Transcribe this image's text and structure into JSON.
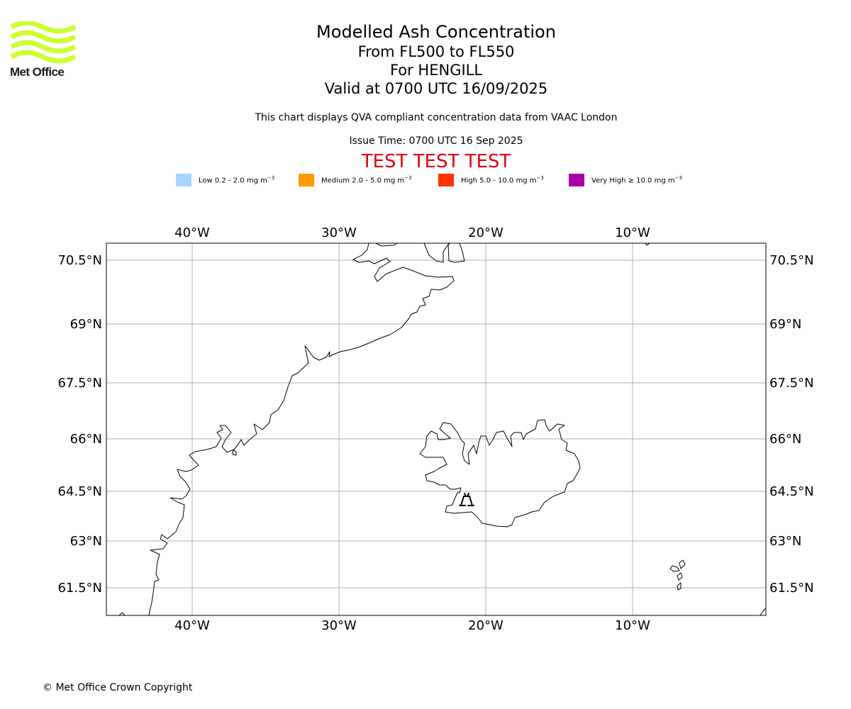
{
  "logo": {
    "wordmark": "Met Office",
    "wave_color": "#ccff33"
  },
  "title": {
    "main": "Modelled Ash Concentration",
    "levels": "From FL500 to FL550",
    "volcano": "For HENGILL",
    "valid": "Valid at 0700 UTC 16/09/2025"
  },
  "info": {
    "description": "This chart displays QVA compliant concentration data from VAAC London",
    "issue_time": "Issue Time: 0700 UTC 16 Sep 2025",
    "test_banner": "TEST TEST TEST"
  },
  "legend": [
    {
      "label": "Low 0.2 - 2.0 mg m",
      "unit_sup": "−3",
      "color": "#a5d5ff"
    },
    {
      "label": "Medium 2.0 - 5.0 mg m",
      "unit_sup": "−3",
      "color": "#ff9900"
    },
    {
      "label": "High 5.0 - 10.0 mg m",
      "unit_sup": "−3",
      "color": "#ff3300"
    },
    {
      "label": "Very High  ≥  10.0 mg m",
      "unit_sup": "−3",
      "color": "#aa00aa"
    }
  ],
  "map": {
    "lon_ticks": [
      "40°W",
      "30°W",
      "20°W",
      "10°W"
    ],
    "lat_ticks": [
      "70.5°N",
      "69°N",
      "67.5°N",
      "66°N",
      "64.5°N",
      "63°N",
      "61.5°N"
    ],
    "volcano_marker": "volcano-icon",
    "coastline_color": "#000000",
    "gridline_color": "#b0b0b0"
  },
  "footer": {
    "copyright": "© Met Office Crown Copyright"
  }
}
